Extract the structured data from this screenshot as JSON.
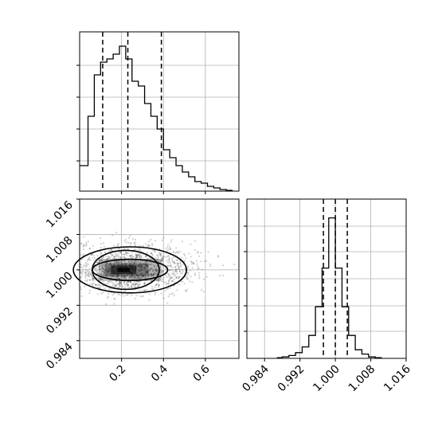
{
  "chart_data": {
    "type": "corner",
    "params": [
      {
        "range": [
          0.0,
          0.76
        ],
        "ticks": [
          0.2,
          0.4,
          0.6
        ],
        "tick_labels": [
          "0.2",
          "0.4",
          "0.6"
        ],
        "quantiles": [
          0.11,
          0.23,
          0.39
        ]
      },
      {
        "range": [
          0.98,
          1.016
        ],
        "ticks": [
          0.984,
          0.992,
          1.0,
          1.008,
          1.016
        ],
        "tick_labels": [
          "0.984",
          "0.992",
          "1.000",
          "1.008",
          "1.016"
        ],
        "quantiles": [
          0.9973,
          1.0,
          1.0027
        ]
      }
    ],
    "hist1": {
      "bin_edges": [
        0.0,
        0.04,
        0.07,
        0.1,
        0.13,
        0.16,
        0.19,
        0.22,
        0.25,
        0.28,
        0.31,
        0.34,
        0.37,
        0.4,
        0.43,
        0.46,
        0.49,
        0.52,
        0.55,
        0.58,
        0.61,
        0.64,
        0.67,
        0.7,
        0.73
      ],
      "counts": [
        0.16,
        0.47,
        0.73,
        0.81,
        0.83,
        0.86,
        0.91,
        0.83,
        0.69,
        0.66,
        0.55,
        0.47,
        0.39,
        0.26,
        0.21,
        0.16,
        0.12,
        0.09,
        0.06,
        0.05,
        0.03,
        0.02,
        0.01,
        0.005
      ],
      "ymax": 1.0
    },
    "hist2": {
      "bin_edges": [
        0.9868,
        0.988,
        0.9895,
        0.991,
        0.9925,
        0.994,
        0.9955,
        0.997,
        0.9985,
        1.0,
        1.0015,
        1.003,
        1.0045,
        1.006,
        1.0075,
        1.009,
        1.0105
      ],
      "counts": [
        0.005,
        0.01,
        0.02,
        0.04,
        0.08,
        0.16,
        0.36,
        0.63,
        0.98,
        0.63,
        0.36,
        0.16,
        0.06,
        0.03,
        0.01,
        0.005
      ],
      "ymax": 1.0
    },
    "scatter": {
      "center": [
        0.23,
        1.0
      ],
      "contours": [
        {
          "center": [
            0.24,
            1.0
          ],
          "rx": 0.18,
          "ry": 0.0024
        },
        {
          "center": [
            0.22,
            1.0
          ],
          "rx": 0.16,
          "ry": 0.0044
        },
        {
          "center": [
            0.24,
            1.0
          ],
          "rx": 0.27,
          "ry": 0.0052
        }
      ]
    }
  }
}
